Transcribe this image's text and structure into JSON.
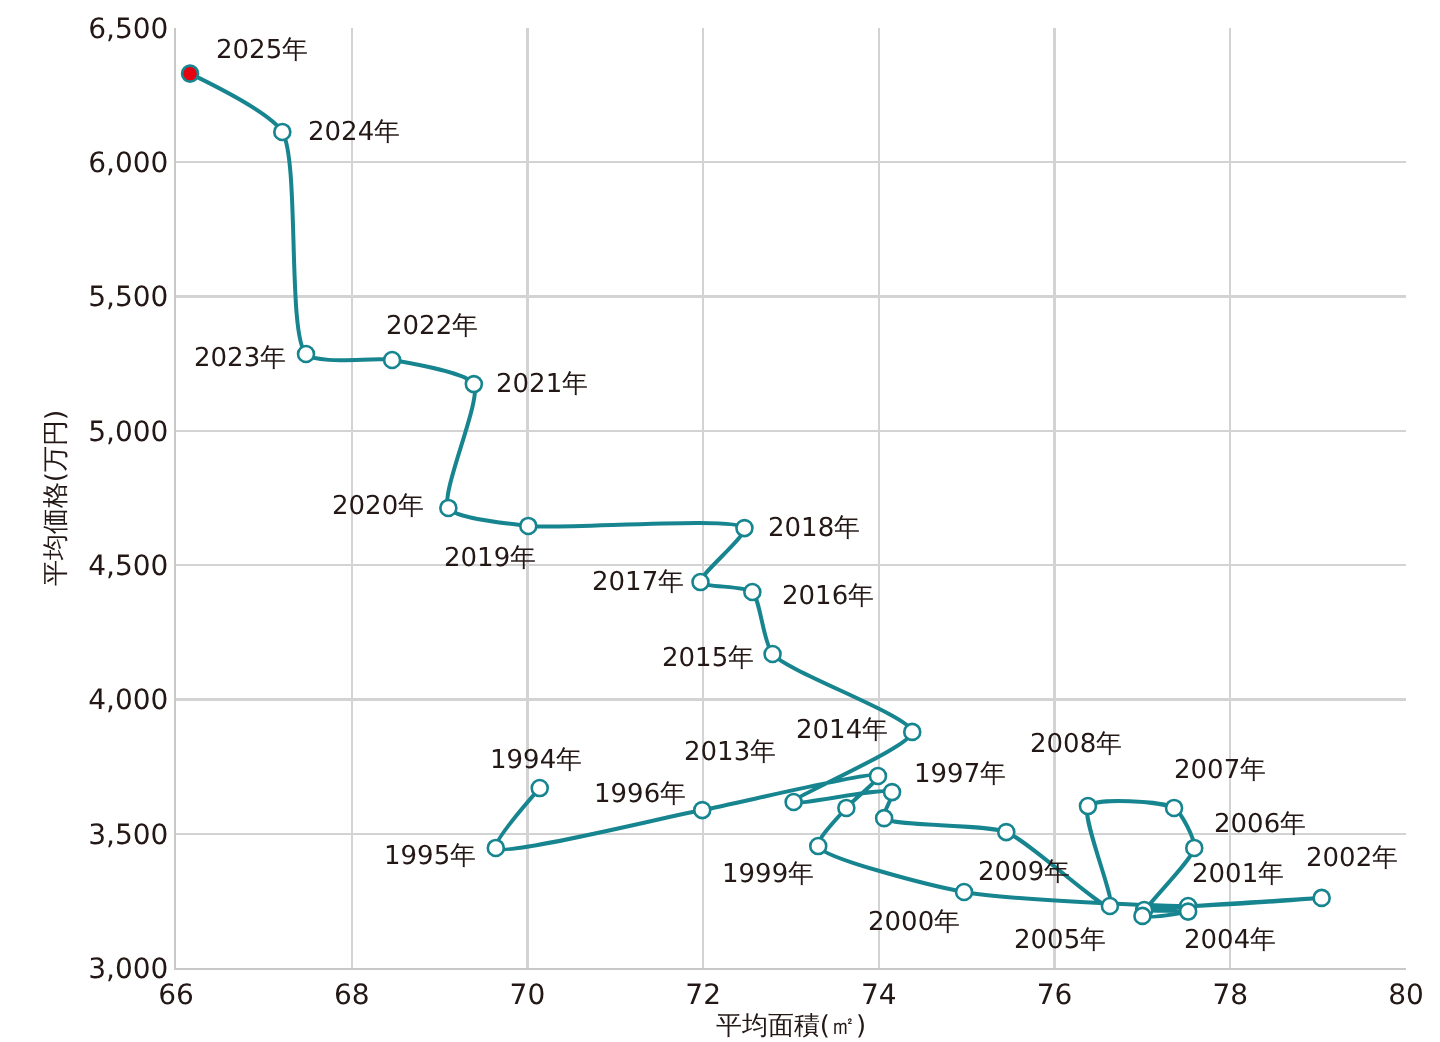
{
  "chart_data": {
    "type": "line",
    "xlabel": "平均面積(㎡)",
    "ylabel": "平均価格(万円)",
    "x": [
      70.14,
      69.64,
      71.99,
      73.99,
      73.63,
      73.31,
      74.97,
      77.52,
      79.04,
      77.02,
      77.52,
      77.0,
      77.59,
      77.36,
      76.38,
      76.63,
      75.45,
      74.06,
      74.15,
      73.03,
      74.38,
      72.79,
      72.56,
      71.97,
      72.47,
      70.01,
      69.1,
      69.39,
      68.46,
      67.48,
      67.21,
      66.16
    ],
    "values": [
      3670,
      3447,
      3588,
      3715,
      3596,
      3454,
      3283,
      3231,
      3261,
      3216,
      3210,
      3194,
      3447,
      3596,
      3603,
      3231,
      3506,
      3558,
      3655,
      3618,
      3879,
      4169,
      4400,
      4437,
      4638,
      4646,
      4713,
      5174,
      5264,
      5286,
      6113,
      6330
    ],
    "annotations": [
      {
        "text": "1994年",
        "x": 70.14,
        "y": 3670
      },
      {
        "text": "1995年",
        "x": 69.64,
        "y": 3447
      },
      {
        "text": "1996年",
        "x": 71.99,
        "y": 3588
      },
      {
        "text": "1997年",
        "x": 73.99,
        "y": 3715
      },
      {
        "text": "1999年",
        "x": 73.31,
        "y": 3454
      },
      {
        "text": "2000年",
        "x": 74.97,
        "y": 3283
      },
      {
        "text": "2001年",
        "x": 77.52,
        "y": 3231
      },
      {
        "text": "2002年",
        "x": 79.04,
        "y": 3261
      },
      {
        "text": "2004年",
        "x": 77.52,
        "y": 3210
      },
      {
        "text": "2005年",
        "x": 77.0,
        "y": 3194
      },
      {
        "text": "2006年",
        "x": 77.59,
        "y": 3447
      },
      {
        "text": "2007年",
        "x": 77.36,
        "y": 3596
      },
      {
        "text": "2008年",
        "x": 76.38,
        "y": 3603
      },
      {
        "text": "2009年",
        "x": 76.63,
        "y": 3231
      },
      {
        "text": "2013年",
        "x": 73.03,
        "y": 3618
      },
      {
        "text": "2014年",
        "x": 74.38,
        "y": 3879
      },
      {
        "text": "2015年",
        "x": 72.79,
        "y": 4169
      },
      {
        "text": "2016年",
        "x": 72.56,
        "y": 4400
      },
      {
        "text": "2017年",
        "x": 71.97,
        "y": 4437
      },
      {
        "text": "2018年",
        "x": 72.47,
        "y": 4638
      },
      {
        "text": "2019年",
        "x": 70.01,
        "y": 4646
      },
      {
        "text": "2020年",
        "x": 69.1,
        "y": 4713
      },
      {
        "text": "2021年",
        "x": 69.39,
        "y": 5174
      },
      {
        "text": "2022年",
        "x": 68.46,
        "y": 5264
      },
      {
        "text": "2023年",
        "x": 67.48,
        "y": 5286
      },
      {
        "text": "2024年",
        "x": 67.21,
        "y": 6113
      },
      {
        "text": "2025年",
        "x": 66.16,
        "y": 6330
      }
    ],
    "color": "#17858f",
    "colors": [
      "#ffffff",
      "#ffffff",
      "#ffffff",
      "#ffffff",
      "#ffffff",
      "#ffffff",
      "#ffffff",
      "#ffffff",
      "#ffffff",
      "#ffffff",
      "#ffffff",
      "#ffffff",
      "#ffffff",
      "#ffffff",
      "#ffffff",
      "#ffffff",
      "#ffffff",
      "#ffffff",
      "#ffffff",
      "#ffffff",
      "#ffffff",
      "#ffffff",
      "#ffffff",
      "#ffffff",
      "#ffffff",
      "#ffffff",
      "#ffffff",
      "#ffffff",
      "#ffffff",
      "#ffffff",
      "#ffffff",
      "#e60012"
    ],
    "marker": "circle",
    "line_style": "solid",
    "grid": true,
    "xlim": [
      66,
      80
    ],
    "xticks": [
      66,
      68,
      70,
      72,
      74,
      76,
      78,
      80
    ],
    "ylim": [
      3000,
      6500
    ],
    "yticks": [
      {
        "value": 3000,
        "label": "3,000"
      },
      {
        "value": 3500,
        "label": "3,500"
      },
      {
        "value": 4000,
        "label": "4,000"
      },
      {
        "value": 4500,
        "label": "4,500"
      },
      {
        "value": 5000,
        "label": "5,000"
      },
      {
        "value": 5500,
        "label": "5,500"
      },
      {
        "value": 6000,
        "label": "6,000"
      },
      {
        "value": 6500,
        "label": "6,500"
      }
    ]
  }
}
